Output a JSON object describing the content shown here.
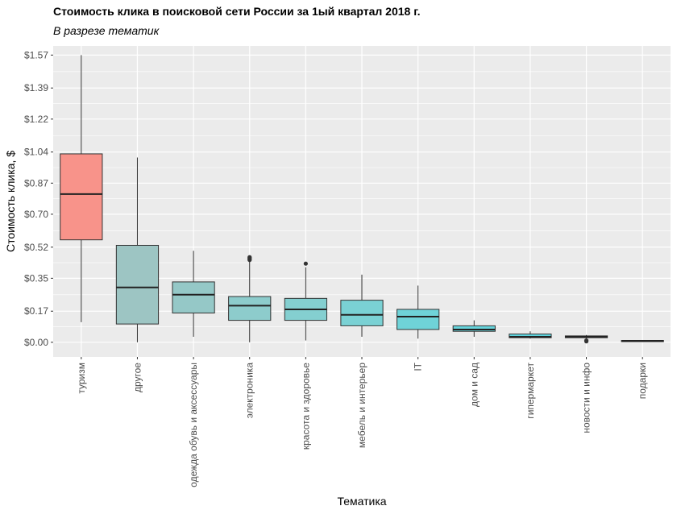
{
  "chart_data": {
    "type": "boxplot",
    "title": "Стоимость клика в поисковой сети России за 1ый квартал 2018 г.",
    "subtitle": "В разрезе тематик",
    "xlabel": "Тематика",
    "ylabel": "Стоимость клика, $",
    "ylim": [
      -0.08,
      1.62
    ],
    "y_ticks": [
      0.0,
      0.17,
      0.35,
      0.52,
      0.7,
      0.87,
      1.04,
      1.22,
      1.39,
      1.57
    ],
    "y_tick_labels": [
      "$0.00",
      "$0.17",
      "$0.35",
      "$0.52",
      "$0.70",
      "$0.87",
      "$1.04",
      "$1.22",
      "$1.39",
      "$1.57"
    ],
    "grid": true,
    "legend": "none",
    "categories": [
      "туризм",
      "другое",
      "одежда обувь и аксессуары",
      "электроника",
      "красота и здоровье",
      "мебель и интерьер",
      "IT",
      "дом и сад",
      "гипермаркет",
      "новости и инфо",
      "подарки"
    ],
    "boxes": [
      {
        "category": "туризм",
        "whisker_low": 0.11,
        "q1": 0.56,
        "median": 0.81,
        "q3": 1.03,
        "whisker_high": 1.57,
        "outliers": [],
        "color": "#f8938a"
      },
      {
        "category": "другое",
        "whisker_low": 0.0,
        "q1": 0.1,
        "median": 0.3,
        "q3": 0.53,
        "whisker_high": 1.01,
        "outliers": [],
        "color": "#9dc5c3"
      },
      {
        "category": "одежда обувь и аксессуары",
        "whisker_low": 0.03,
        "q1": 0.16,
        "median": 0.26,
        "q3": 0.33,
        "whisker_high": 0.5,
        "outliers": [],
        "color": "#95c8c7"
      },
      {
        "category": "электроника",
        "whisker_low": 0.0,
        "q1": 0.12,
        "median": 0.2,
        "q3": 0.25,
        "whisker_high": 0.44,
        "outliers": [
          0.45,
          0.455,
          0.46,
          0.465
        ],
        "color": "#8dcccc"
      },
      {
        "category": "красота и здоровье",
        "whisker_low": 0.01,
        "q1": 0.12,
        "median": 0.18,
        "q3": 0.24,
        "whisker_high": 0.41,
        "outliers": [
          0.43
        ],
        "color": "#84cfd0"
      },
      {
        "category": "мебель и интерьер",
        "whisker_low": 0.03,
        "q1": 0.09,
        "median": 0.15,
        "q3": 0.23,
        "whisker_high": 0.37,
        "outliers": [],
        "color": "#7ad1d4"
      },
      {
        "category": "IT",
        "whisker_low": 0.02,
        "q1": 0.07,
        "median": 0.14,
        "q3": 0.18,
        "whisker_high": 0.31,
        "outliers": [],
        "color": "#6fd3d8"
      },
      {
        "category": "дом и сад",
        "whisker_low": 0.03,
        "q1": 0.06,
        "median": 0.07,
        "q3": 0.09,
        "whisker_high": 0.12,
        "outliers": [],
        "color": "#66d4dc"
      },
      {
        "category": "гипермаркет",
        "whisker_low": 0.02,
        "q1": 0.025,
        "median": 0.03,
        "q3": 0.045,
        "whisker_high": 0.06,
        "outliers": [],
        "color": "#5dd5df"
      },
      {
        "category": "новости и инфо",
        "whisker_low": 0.02,
        "q1": 0.025,
        "median": 0.03,
        "q3": 0.035,
        "whisker_high": 0.04,
        "outliers": [
          0.005,
          0.01
        ],
        "color": "#55d6e2"
      },
      {
        "category": "подарки",
        "whisker_low": 0.005,
        "q1": 0.007,
        "median": 0.008,
        "q3": 0.01,
        "whisker_high": 0.012,
        "outliers": [],
        "color": "#4ed7e5"
      }
    ],
    "panel_background": "#ebebeb",
    "grid_color": "#ffffff",
    "box_outline_color": "#333333"
  }
}
